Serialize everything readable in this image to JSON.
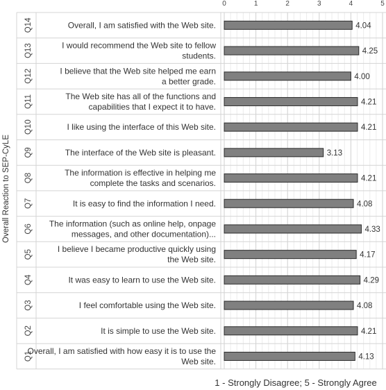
{
  "chart_data": {
    "type": "bar",
    "orientation": "horizontal",
    "ylabel": "Overall Reaction to SEP-CyLE",
    "xlabel": "1 - Strongly Disagree; 5 - Strongly Agree",
    "xlim": [
      0,
      5
    ],
    "xticks": [
      "0",
      "1",
      "2",
      "3",
      "4",
      "5"
    ],
    "grid": true,
    "bar_color": "#808080",
    "rows": [
      {
        "id": "Q14",
        "lines": [
          "Overall, I am satisfied with the Web site."
        ],
        "value": 4.04,
        "label": "4.04"
      },
      {
        "id": "Q13",
        "lines": [
          "I would recommend the Web site to fellow",
          "students."
        ],
        "value": 4.25,
        "label": "4.25"
      },
      {
        "id": "Q12",
        "lines": [
          "I believe that the Web site helped me earn",
          "a better grade."
        ],
        "value": 4.0,
        "label": "4.00"
      },
      {
        "id": "Q11",
        "lines": [
          "The Web site has all of the functions and",
          "capabilities that I expect it to have."
        ],
        "value": 4.21,
        "label": "4.21"
      },
      {
        "id": "Q10",
        "lines": [
          "I like using the interface of this Web site."
        ],
        "value": 4.21,
        "label": "4.21"
      },
      {
        "id": "Q9",
        "lines": [
          "The interface of the Web site is pleasant."
        ],
        "value": 3.13,
        "label": "3.13"
      },
      {
        "id": "Q8",
        "lines": [
          "The information is effective in helping me",
          "complete the tasks and scenarios."
        ],
        "value": 4.21,
        "label": "4.21"
      },
      {
        "id": "Q7",
        "lines": [
          "It is easy to find the information I need."
        ],
        "value": 4.08,
        "label": "4.08"
      },
      {
        "id": "Q6",
        "lines": [
          "The information (such as online help, onpage",
          "messages, and other documentation)..."
        ],
        "value": 4.33,
        "label": "4.33"
      },
      {
        "id": "Q5",
        "lines": [
          "I believe I became productive quickly using",
          "the Web site."
        ],
        "value": 4.17,
        "label": "4.17"
      },
      {
        "id": "Q4",
        "lines": [
          "It was easy to learn to use the Web site."
        ],
        "value": 4.29,
        "label": "4.29"
      },
      {
        "id": "Q3",
        "lines": [
          "I feel comfortable using the Web site."
        ],
        "value": 4.08,
        "label": "4.08"
      },
      {
        "id": "Q2",
        "lines": [
          "It is simple to use the Web site."
        ],
        "value": 4.21,
        "label": "4.21"
      },
      {
        "id": "Q1",
        "lines": [
          "Overall, I am satisfied with how easy it is to use the",
          "Web site."
        ],
        "value": 4.13,
        "label": "4.13"
      }
    ]
  }
}
